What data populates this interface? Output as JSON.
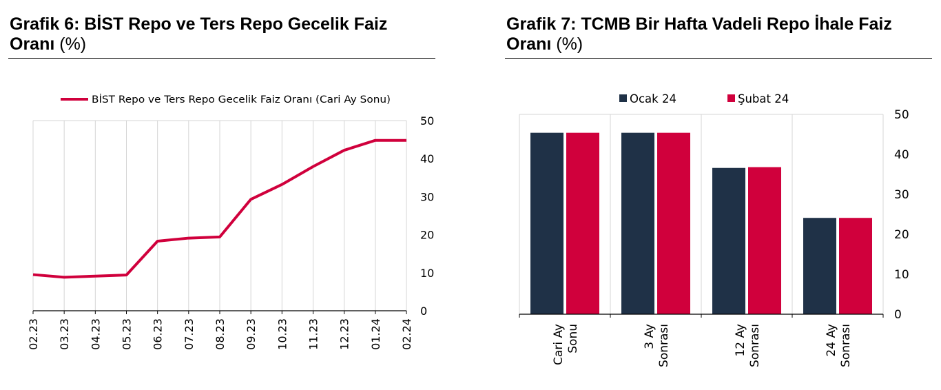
{
  "colors": {
    "red": "#d0003c",
    "navy": "#1f3147",
    "grid": "#d4d4d4",
    "axis": "#000000"
  },
  "chart_data": [
    {
      "id": "grafik6",
      "type": "line",
      "title": "Grafik 6:  BİST Repo ve Ters Repo Gecelik Faiz",
      "title_line2": "Oranı",
      "title_unit": "(%)",
      "x": [
        "02.23",
        "03.23",
        "04.23",
        "05.23",
        "06.23",
        "07.23",
        "08.23",
        "09.23",
        "10.23",
        "11.23",
        "12.23",
        "01.24",
        "02.24"
      ],
      "series": [
        {
          "name": "BİST Repo ve Ters Repo Gecelik Faiz Oranı (Cari Ay Sonu)",
          "values": [
            9.5,
            8.8,
            9.1,
            9.4,
            18.3,
            19.1,
            19.4,
            29.3,
            33.2,
            37.9,
            42.2,
            44.8,
            44.8
          ]
        }
      ],
      "ylim": [
        0,
        50
      ],
      "yticks": [
        "0",
        "10",
        "20",
        "30",
        "40",
        "50"
      ],
      "legend": "top",
      "grid": "vertical"
    },
    {
      "id": "grafik7",
      "type": "bar",
      "title": "Grafik 7: TCMB Bir Hafta Vadeli Repo İhale Faiz",
      "title_line2": "Oranı",
      "title_unit": "(%)",
      "categories": [
        [
          "Cari Ay",
          "Sonu"
        ],
        [
          "3 Ay",
          "Sonrası"
        ],
        [
          "12 Ay",
          "Sonrası"
        ],
        [
          "24 Ay",
          "Sonrası"
        ]
      ],
      "series": [
        {
          "name": "Ocak 24",
          "values": [
            45.4,
            45.4,
            36.6,
            24.1
          ]
        },
        {
          "name": "Şubat 24",
          "values": [
            45.4,
            45.4,
            36.8,
            24.1
          ]
        }
      ],
      "ylim": [
        0,
        50
      ],
      "yticks": [
        "0",
        "10",
        "20",
        "30",
        "40",
        "50"
      ],
      "legend": "top",
      "grid": "vertical"
    }
  ]
}
